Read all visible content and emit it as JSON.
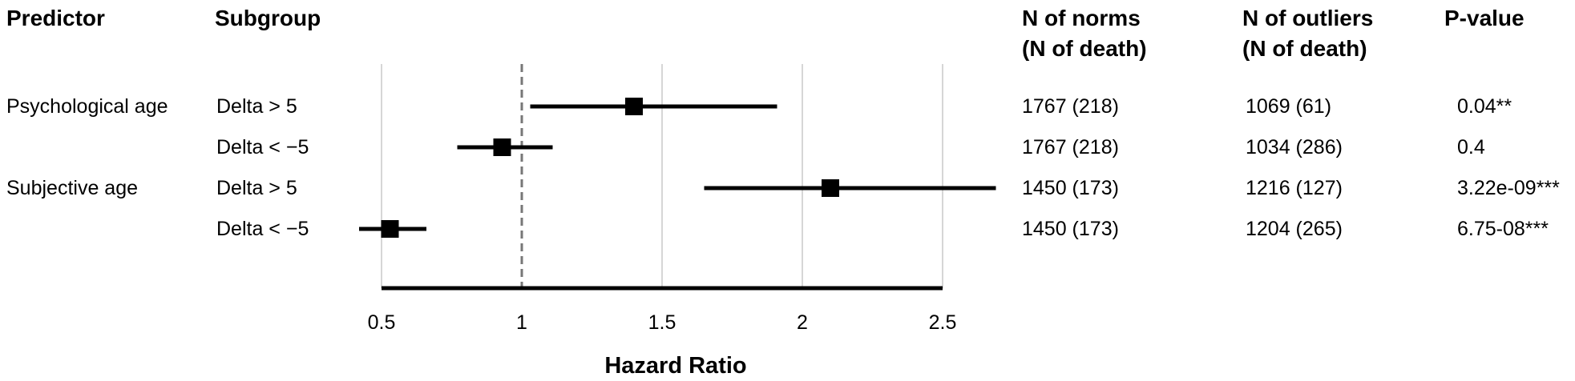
{
  "headers": {
    "predictor": "Predictor",
    "subgroup": "Subgroup",
    "norms_line1": "N of norms",
    "norms_line2": "(N of death)",
    "outliers_line1": "N of outliers",
    "outliers_line2": "(N of death)",
    "pvalue": "P-value"
  },
  "rows": [
    {
      "predictor": "Psychological age",
      "subgroup": "Delta > 5",
      "norms": "1767 (218)",
      "outliers": "1069 (61)",
      "pvalue": "0.04**"
    },
    {
      "predictor": "",
      "subgroup": "Delta < −5",
      "norms": "1767 (218)",
      "outliers": "1034 (286)",
      "pvalue": "0.4"
    },
    {
      "predictor": "Subjective age",
      "subgroup": "Delta > 5",
      "norms": "1450 (173)",
      "outliers": "1216 (127)",
      "pvalue": "3.22e-09***"
    },
    {
      "predictor": "",
      "subgroup": "Delta < −5",
      "norms": "1450 (173)",
      "outliers": "1204 (265)",
      "pvalue": "6.75-08***"
    }
  ],
  "chart_data": {
    "type": "scatter",
    "xlabel": "Hazard Ratio",
    "xlim": [
      0.5,
      2.5
    ],
    "xticks": [
      0.5,
      1,
      1.5,
      2,
      2.5
    ],
    "tick_labels": [
      "0.5",
      "1",
      "1.5",
      "2",
      "2.5"
    ],
    "reference_line": 1,
    "grid": true,
    "points": [
      {
        "estimate": 1.4,
        "lower": 1.03,
        "upper": 1.91
      },
      {
        "estimate": 0.93,
        "lower": 0.77,
        "upper": 1.11
      },
      {
        "estimate": 2.1,
        "lower": 1.65,
        "upper": 2.69
      },
      {
        "estimate": 0.53,
        "lower": 0.42,
        "upper": 0.66
      }
    ],
    "colors": {
      "marker": "#000000",
      "grid": "#c8c8c8",
      "reference": "#777777"
    }
  }
}
